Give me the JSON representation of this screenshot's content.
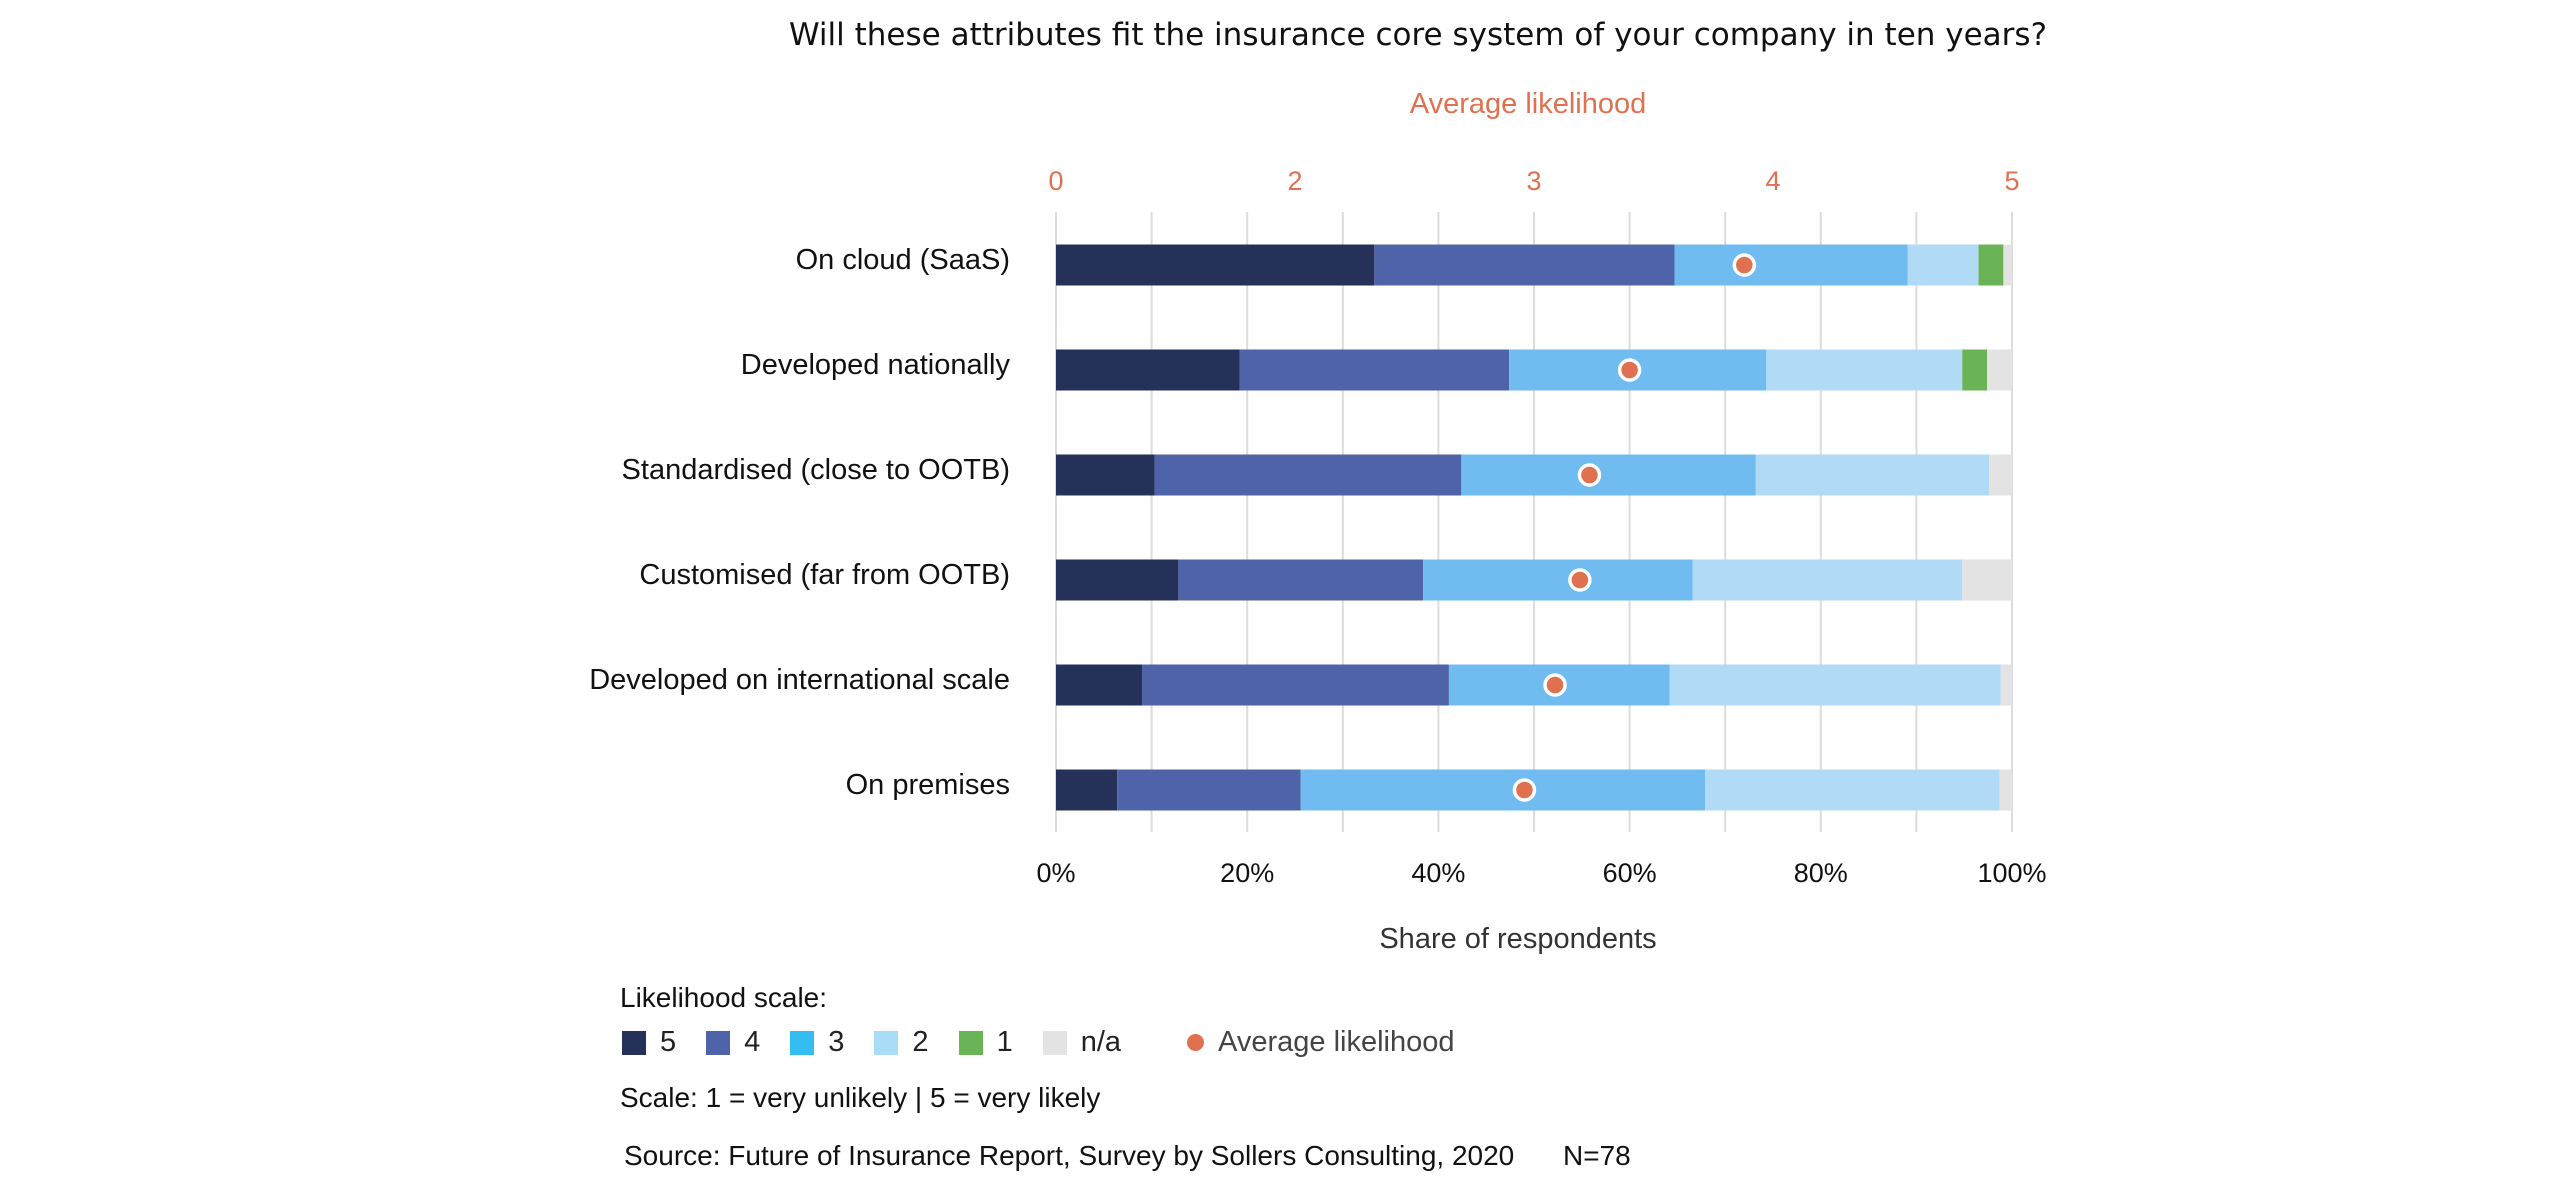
{
  "chart_data": {
    "type": "bar",
    "orientation": "horizontal",
    "stacked": true,
    "title": "Will these attributes fit the insurance core system of your company in ten years?",
    "xlabel": "Share of respondents",
    "x_ticks": [
      "0%",
      "20%",
      "40%",
      "60%",
      "80%",
      "100%"
    ],
    "xlim": [
      0,
      100
    ],
    "secondary_axis": {
      "label": "Average likelihood",
      "ticks": [
        0,
        2,
        3,
        4,
        5
      ],
      "tick_fractions": [
        0,
        0.25,
        0.5,
        0.75,
        1.0
      ]
    },
    "categories": [
      "On cloud (SaaS)",
      "Developed nationally",
      "Standardised (close to OOTB)",
      "Customised (far from OOTB)",
      "Developed on international scale",
      "On premises"
    ],
    "series": [
      {
        "name": "5",
        "color": "#263159",
        "values": [
          33.3,
          19.2,
          10.3,
          12.8,
          9.0,
          6.4
        ]
      },
      {
        "name": "4",
        "color": "#4f63a8",
        "values": [
          31.4,
          28.2,
          32.1,
          25.6,
          32.1,
          19.2
        ]
      },
      {
        "name": "3",
        "color": "#70bbf0",
        "values": [
          24.4,
          26.9,
          30.8,
          28.2,
          23.1,
          42.3
        ]
      },
      {
        "name": "2",
        "color": "#b1daf6",
        "values": [
          7.4,
          20.5,
          24.4,
          28.2,
          34.6,
          30.8
        ]
      },
      {
        "name": "1",
        "color": "#6ab356",
        "values": [
          2.6,
          2.6,
          0,
          0,
          0,
          0
        ]
      },
      {
        "name": "n/a",
        "color": "#e3e3e3",
        "values": [
          0.9,
          2.6,
          2.4,
          5.2,
          1.2,
          1.3
        ]
      }
    ],
    "average_likelihood": {
      "name": "Average likelihood",
      "color": "#e07150",
      "axis_fractions": [
        0.72,
        0.6,
        0.558,
        0.548,
        0.522,
        0.49
      ]
    },
    "grid": true,
    "legend_position": "bottom-left"
  },
  "legend": {
    "title": "Likelihood scale:",
    "items": [
      {
        "label": "5",
        "color": "#263159"
      },
      {
        "label": "4",
        "color": "#4f63a8"
      },
      {
        "label": "3",
        "color": "#34bdf0"
      },
      {
        "label": "2",
        "color": "#a9dcf6"
      },
      {
        "label": "1",
        "color": "#6ab356"
      },
      {
        "label": "n/a",
        "color": "#e3e3e3"
      }
    ],
    "avg_label": "Average likelihood",
    "avg_color": "#e07150"
  },
  "notes": {
    "scale": "Scale: 1 = very unlikely | 5 = very likely",
    "source": "Source: Future of Insurance Report, Survey by Sollers Consulting, 2020",
    "n": "N=78"
  }
}
